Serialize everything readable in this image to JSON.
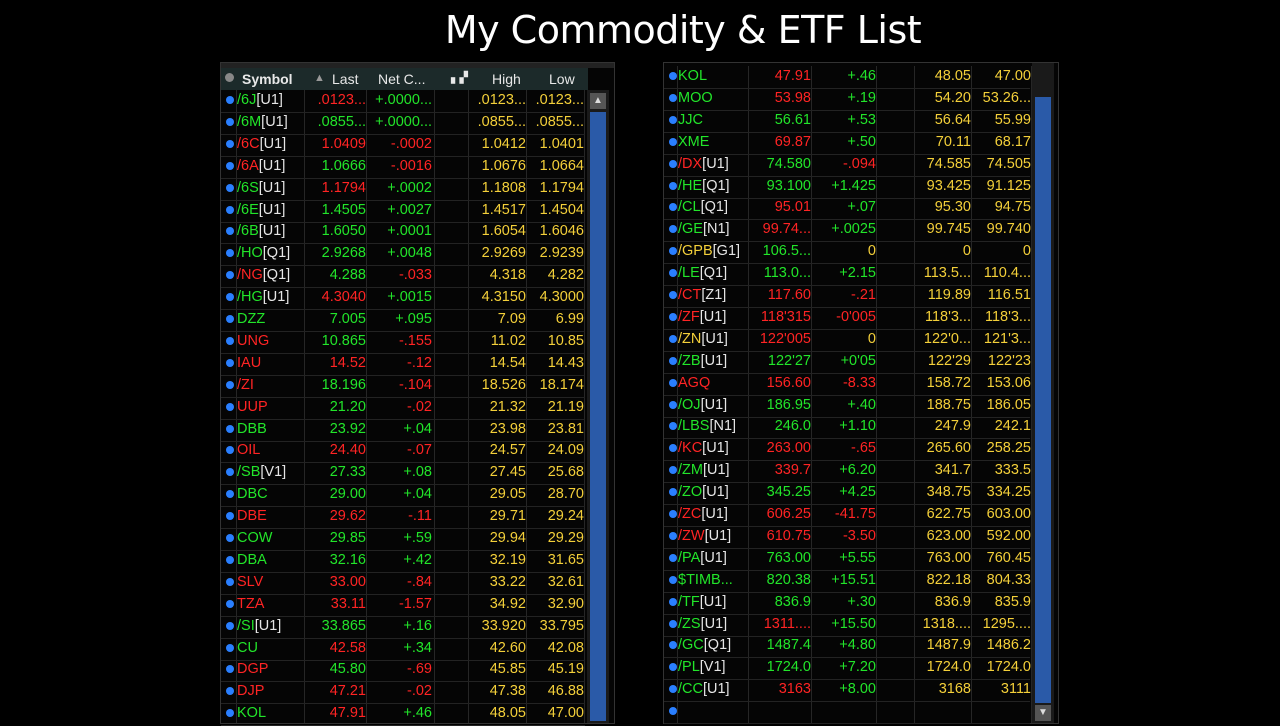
{
  "title": "My Commodity & ETF List",
  "colors": {
    "up": "#22e52a",
    "down": "#ff2424",
    "neutral": "#f4d03a",
    "value": "#f4d03a",
    "suffix": "#e6e6e6",
    "scroll": "#2a5aa8"
  },
  "headers": {
    "symbol": "Symbol",
    "last": "Last",
    "net": "Net C...",
    "high": "High",
    "low": "Low",
    "sort_icon": "triangle-up-icon",
    "chart_icon": "bar-chart-icon"
  },
  "left_rows": [
    [
      "/6J",
      "[U1]",
      "up",
      ".0123...",
      "down",
      "+.0000...",
      ".0123...",
      ".0123..."
    ],
    [
      "/6M",
      "[U1]",
      "up",
      ".0855...",
      "up",
      "+.0000...",
      ".0855...",
      ".0855..."
    ],
    [
      "/6C",
      "[U1]",
      "down",
      "1.0409",
      "down",
      "-.0002",
      "1.0412",
      "1.0401"
    ],
    [
      "/6A",
      "[U1]",
      "down",
      "1.0666",
      "up",
      "-.0016",
      "1.0676",
      "1.0664"
    ],
    [
      "/6S",
      "[U1]",
      "up",
      "1.1794",
      "down",
      "+.0002",
      "1.1808",
      "1.1794"
    ],
    [
      "/6E",
      "[U1]",
      "up",
      "1.4505",
      "up",
      "+.0027",
      "1.4517",
      "1.4504"
    ],
    [
      "/6B",
      "[U1]",
      "up",
      "1.6050",
      "up",
      "+.0001",
      "1.6054",
      "1.6046"
    ],
    [
      "/HO",
      "[Q1]",
      "up",
      "2.9268",
      "up",
      "+.0048",
      "2.9269",
      "2.9239"
    ],
    [
      "/NG",
      "[Q1]",
      "down",
      "4.288",
      "up",
      "-.033",
      "4.318",
      "4.282"
    ],
    [
      "/HG",
      "[U1]",
      "up",
      "4.3040",
      "down",
      "+.0015",
      "4.3150",
      "4.3000"
    ],
    [
      "DZZ",
      "",
      "up",
      "7.005",
      "up",
      "+.095",
      "7.09",
      "6.99"
    ],
    [
      "UNG",
      "",
      "down",
      "10.865",
      "up",
      "-.155",
      "11.02",
      "10.85"
    ],
    [
      "IAU",
      "",
      "down",
      "14.52",
      "down",
      "-.12",
      "14.54",
      "14.43"
    ],
    [
      "/ZI",
      "",
      "down",
      "18.196",
      "up",
      "-.104",
      "18.526",
      "18.174"
    ],
    [
      "UUP",
      "",
      "down",
      "21.20",
      "up",
      "-.02",
      "21.32",
      "21.19"
    ],
    [
      "DBB",
      "",
      "up",
      "23.92",
      "up",
      "+.04",
      "23.98",
      "23.81"
    ],
    [
      "OIL",
      "",
      "down",
      "24.40",
      "down",
      "-.07",
      "24.57",
      "24.09"
    ],
    [
      "/SB",
      "[V1]",
      "up",
      "27.33",
      "up",
      "+.08",
      "27.45",
      "25.68"
    ],
    [
      "DBC",
      "",
      "up",
      "29.00",
      "up",
      "+.04",
      "29.05",
      "28.70"
    ],
    [
      "DBE",
      "",
      "down",
      "29.62",
      "down",
      "-.11",
      "29.71",
      "29.24"
    ],
    [
      "COW",
      "",
      "up",
      "29.85",
      "up",
      "+.59",
      "29.94",
      "29.29"
    ],
    [
      "DBA",
      "",
      "up",
      "32.16",
      "up",
      "+.42",
      "32.19",
      "31.65"
    ],
    [
      "SLV",
      "",
      "down",
      "33.00",
      "down",
      "-.84",
      "33.22",
      "32.61"
    ],
    [
      "TZA",
      "",
      "down",
      "33.11",
      "down",
      "-1.57",
      "34.92",
      "32.90"
    ],
    [
      "/SI",
      "[U1]",
      "up",
      "33.865",
      "up",
      "+.16",
      "33.920",
      "33.795"
    ],
    [
      "CU",
      "",
      "up",
      "42.58",
      "down",
      "+.34",
      "42.60",
      "42.08"
    ],
    [
      "DGP",
      "",
      "down",
      "45.80",
      "up",
      "-.69",
      "45.85",
      "45.19"
    ],
    [
      "DJP",
      "",
      "down",
      "47.21",
      "down",
      "-.02",
      "47.38",
      "46.88"
    ],
    [
      "KOL",
      "",
      "up",
      "47.91",
      "down",
      "+.46",
      "48.05",
      "47.00"
    ]
  ],
  "right_rows": [
    [
      "KOL",
      "",
      "up",
      "47.91",
      "down",
      "+.46",
      "48.05",
      "47.00"
    ],
    [
      "MOO",
      "",
      "up",
      "53.98",
      "down",
      "+.19",
      "54.20",
      "53.26..."
    ],
    [
      "JJC",
      "",
      "up",
      "56.61",
      "up",
      "+.53",
      "56.64",
      "55.99"
    ],
    [
      "XME",
      "",
      "up",
      "69.87",
      "down",
      "+.50",
      "70.11",
      "68.17"
    ],
    [
      "/DX",
      "[U1]",
      "down",
      "74.580",
      "up",
      "-.094",
      "74.585",
      "74.505"
    ],
    [
      "/HE",
      "[Q1]",
      "up",
      "93.100",
      "up",
      "+1.425",
      "93.425",
      "91.125"
    ],
    [
      "/CL",
      "[Q1]",
      "up",
      "95.01",
      "down",
      "+.07",
      "95.30",
      "94.75"
    ],
    [
      "/GE",
      "[N1]",
      "up",
      "99.74...",
      "down",
      "+.0025",
      "99.745",
      "99.740"
    ],
    [
      "/GPB",
      "[G1]",
      "neutral",
      "106.5...",
      "up",
      "0",
      "0",
      "0"
    ],
    [
      "/LE",
      "[Q1]",
      "up",
      "113.0...",
      "up",
      "+2.15",
      "113.5...",
      "110.4..."
    ],
    [
      "/CT",
      "[Z1]",
      "down",
      "117.60",
      "down",
      "-.21",
      "119.89",
      "116.51"
    ],
    [
      "/ZF",
      "[U1]",
      "down",
      "118'315",
      "down",
      "-0'005",
      "118'3...",
      "118'3..."
    ],
    [
      "/ZN",
      "[U1]",
      "neutral",
      "122'005",
      "down",
      "0",
      "122'0...",
      "121'3..."
    ],
    [
      "/ZB",
      "[U1]",
      "up",
      "122'27",
      "up",
      "+0'05",
      "122'29",
      "122'23"
    ],
    [
      "AGQ",
      "",
      "down",
      "156.60",
      "down",
      "-8.33",
      "158.72",
      "153.06"
    ],
    [
      "/OJ",
      "[U1]",
      "up",
      "186.95",
      "up",
      "+.40",
      "188.75",
      "186.05"
    ],
    [
      "/LBS",
      "[N1]",
      "up",
      "246.0",
      "up",
      "+1.10",
      "247.9",
      "242.1"
    ],
    [
      "/KC",
      "[U1]",
      "down",
      "263.00",
      "down",
      "-.65",
      "265.60",
      "258.25"
    ],
    [
      "/ZM",
      "[U1]",
      "up",
      "339.7",
      "down",
      "+6.20",
      "341.7",
      "333.5"
    ],
    [
      "/ZO",
      "[U1]",
      "up",
      "345.25",
      "up",
      "+4.25",
      "348.75",
      "334.25"
    ],
    [
      "/ZC",
      "[U1]",
      "down",
      "606.25",
      "down",
      "-41.75",
      "622.75",
      "603.00"
    ],
    [
      "/ZW",
      "[U1]",
      "down",
      "610.75",
      "down",
      "-3.50",
      "623.00",
      "592.00"
    ],
    [
      "/PA",
      "[U1]",
      "up",
      "763.00",
      "up",
      "+5.55",
      "763.00",
      "760.45"
    ],
    [
      "$TIMB...",
      "",
      "up",
      "820.38",
      "up",
      "+15.51",
      "822.18",
      "804.33"
    ],
    [
      "/TF",
      "[U1]",
      "up",
      "836.9",
      "up",
      "+.30",
      "836.9",
      "835.9"
    ],
    [
      "/ZS",
      "[U1]",
      "up",
      "1311....",
      "down",
      "+15.50",
      "1318....",
      "1295...."
    ],
    [
      "/GC",
      "[Q1]",
      "up",
      "1487.4",
      "up",
      "+4.80",
      "1487.9",
      "1486.2"
    ],
    [
      "/PL",
      "[V1]",
      "up",
      "1724.0",
      "up",
      "+7.20",
      "1724.0",
      "1724.0"
    ],
    [
      "/CC",
      "[U1]",
      "up",
      "3163",
      "down",
      "+8.00",
      "3168",
      "3111"
    ],
    [
      "",
      "",
      "up",
      "",
      "up",
      "",
      "",
      ""
    ]
  ]
}
